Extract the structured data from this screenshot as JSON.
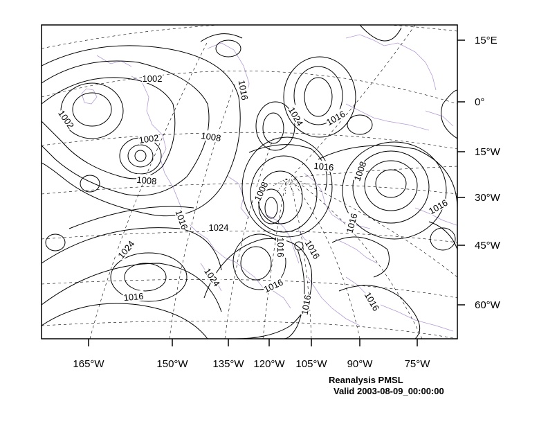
{
  "map": {
    "bottom_labels": [
      "165°W",
      "150°W",
      "135°W",
      "120°W",
      "105°W",
      "90°W",
      "75°W"
    ],
    "right_labels": [
      "15°E",
      "0°",
      "15°W",
      "30°W",
      "45°W",
      "60°W"
    ],
    "contour_labels": [
      "1002",
      "1002",
      "1002",
      "1008",
      "1008",
      "1016",
      "1024",
      "1016",
      "1016",
      "1008",
      "1008",
      "1016",
      "1016",
      "1024",
      "1016",
      "1016",
      "1016",
      "1024",
      "1024",
      "1016",
      "1016",
      "1016",
      "1016"
    ],
    "caption_line1": "Reanalysis PMSL",
    "caption_line2": "Valid 2003-08-09_00:00:00",
    "colors": {
      "contour": "#000000",
      "coastline": "#b59ad6",
      "grid": "#000000"
    }
  }
}
